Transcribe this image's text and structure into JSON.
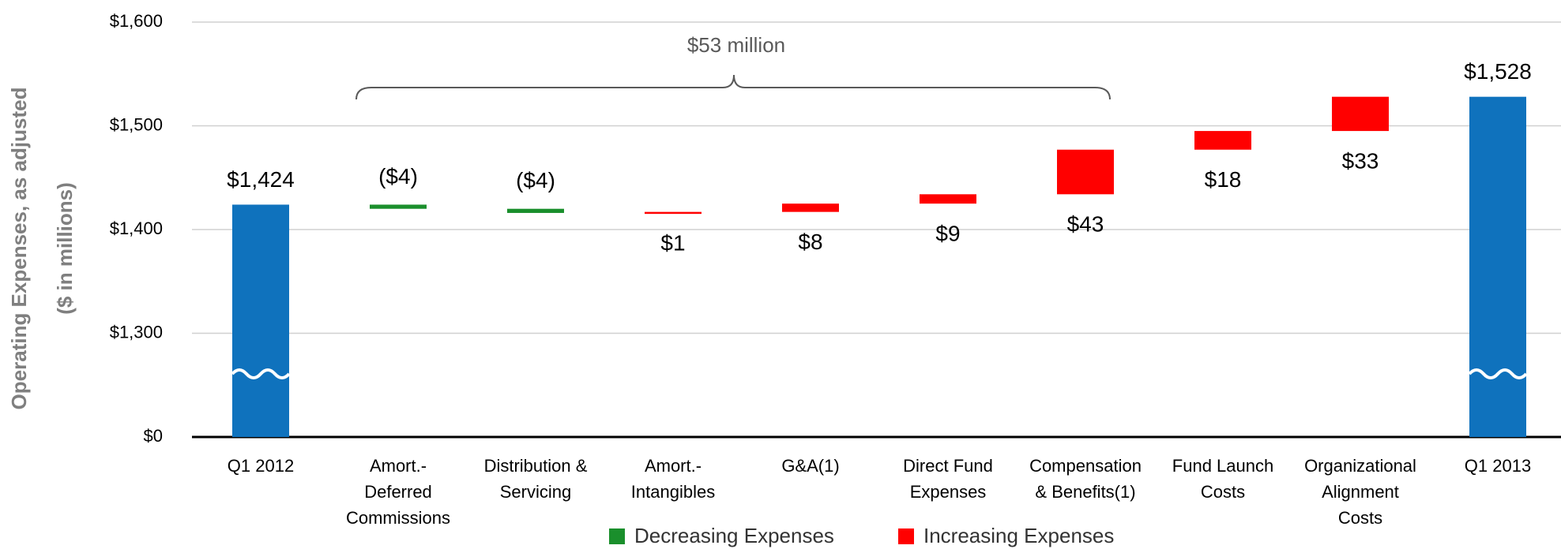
{
  "chart_data": {
    "type": "waterfall",
    "y_label": [
      "Operating Expenses, as adjusted",
      "($ in millions)"
    ],
    "annotation": "$53 million",
    "categories": [
      [
        "Q1 2012"
      ],
      [
        "Amort.-",
        "Deferred",
        "Commissions"
      ],
      [
        "Distribution &",
        "Servicing"
      ],
      [
        "Amort.-",
        "Intangibles"
      ],
      [
        "G&A(1)"
      ],
      [
        "Direct Fund",
        "Expenses"
      ],
      [
        "Compensation",
        "& Benefits(1)"
      ],
      [
        "Fund Launch",
        "Costs"
      ],
      [
        "Organizational",
        "Alignment",
        "Costs"
      ],
      [
        "Q1 2013"
      ]
    ],
    "measure": [
      "absolute",
      "relative",
      "relative",
      "relative",
      "relative",
      "relative",
      "relative",
      "relative",
      "relative",
      "absolute"
    ],
    "values": [
      1424,
      -4,
      -4,
      1,
      8,
      9,
      43,
      18,
      33,
      1528
    ],
    "value_labels": [
      "$1,424",
      "($4)",
      "($4)",
      "$1",
      "$8",
      "$9",
      "$43",
      "$18",
      "$33",
      "$1,528"
    ],
    "total_color": "#0f72bd",
    "legend": [
      {
        "name": "Decreasing Expenses",
        "color": "#1a8f2c"
      },
      {
        "name": "Increasing Expenses",
        "color": "#ff0000"
      }
    ],
    "ylim": [
      0,
      1600
    ],
    "yticks": [
      {
        "value": 0,
        "label": "$0"
      },
      {
        "value": 1300,
        "label": "$1,300"
      },
      {
        "value": 1400,
        "label": "$1,400"
      },
      {
        "value": 1500,
        "label": "$1,500"
      },
      {
        "value": 1600,
        "label": "$1,600"
      }
    ],
    "grid": true
  }
}
